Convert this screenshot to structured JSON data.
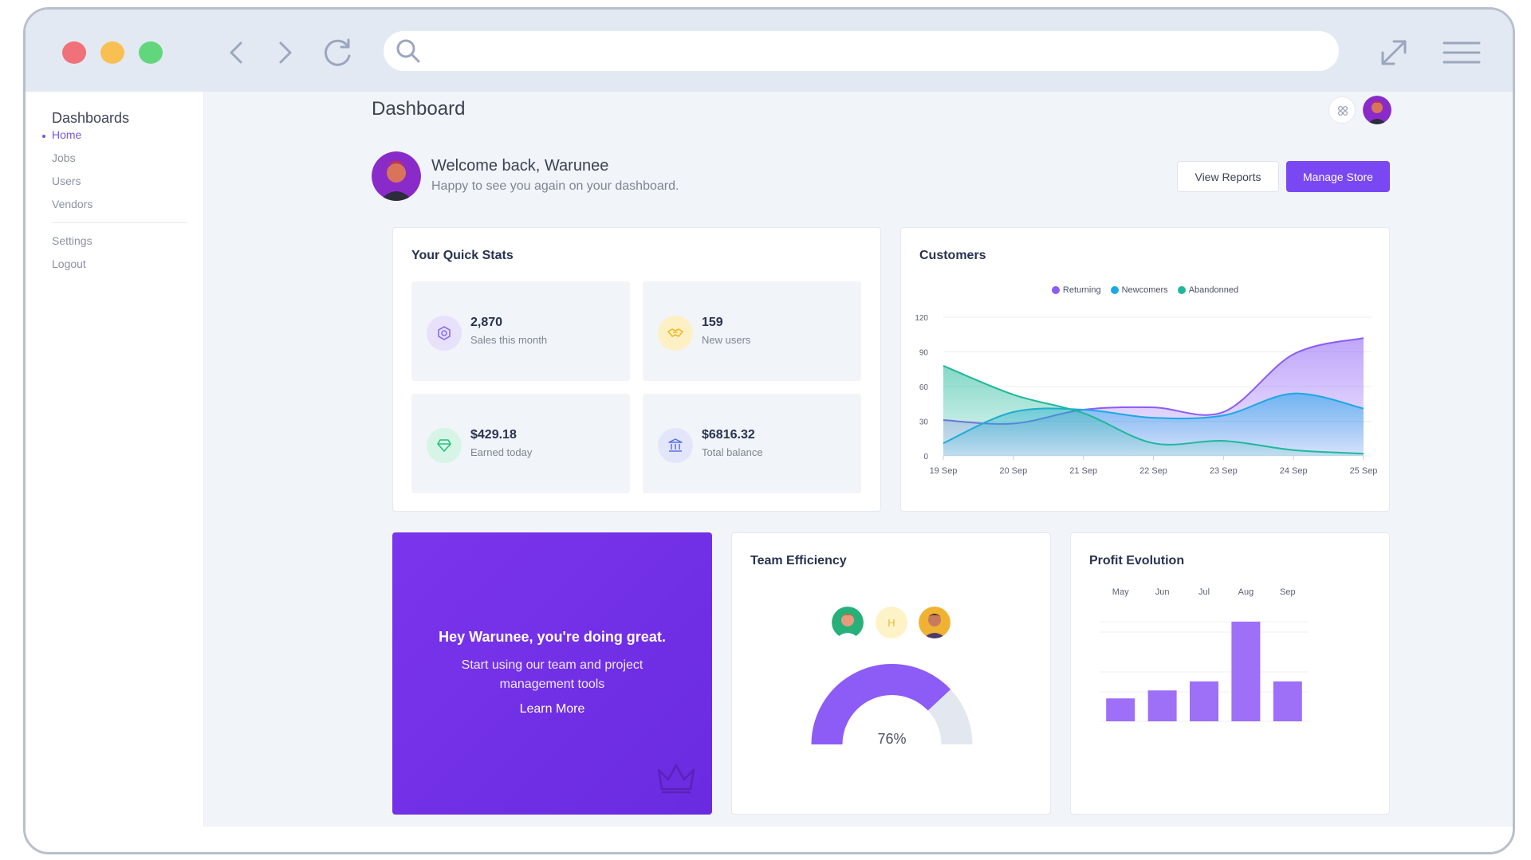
{
  "browser": {
    "address_value": "",
    "address_placeholder": ""
  },
  "sidebar": {
    "title": "Dashboards",
    "items": [
      {
        "label": "Home",
        "active": true
      },
      {
        "label": "Jobs"
      },
      {
        "label": "Users"
      },
      {
        "label": "Vendors"
      }
    ],
    "secondary_items": [
      {
        "label": "Settings"
      },
      {
        "label": "Logout"
      }
    ]
  },
  "header": {
    "title": "Dashboard"
  },
  "welcome": {
    "title": "Welcome back, Warunee",
    "subtitle": "Happy to see you again on your dashboard.",
    "view_reports_label": "View Reports",
    "manage_store_label": "Manage Store"
  },
  "quick_stats": {
    "title": "Your Quick Stats",
    "items": [
      {
        "value": "2,870",
        "label": "Sales this month",
        "icon": "target-icon",
        "color": "#8b6cf0"
      },
      {
        "value": "159",
        "label": "New users",
        "icon": "handshake-icon",
        "color": "#f5b723"
      },
      {
        "value": "$429.18",
        "label": "Earned today",
        "icon": "gem-icon",
        "color": "#22c07a"
      },
      {
        "value": "$6816.32",
        "label": "Total balance",
        "icon": "bank-icon",
        "color": "#5b6de8"
      }
    ]
  },
  "customers_chart_data": {
    "type": "area",
    "title": "Customers",
    "categories": [
      "19 Sep",
      "20 Sep",
      "21 Sep",
      "22 Sep",
      "23 Sep",
      "24 Sep",
      "25 Sep"
    ],
    "ylim": [
      0,
      120
    ],
    "yticks": [
      "120",
      "90",
      "60",
      "30",
      "0"
    ],
    "legend_position": "top-center",
    "series": [
      {
        "name": "Returning",
        "color": "#8b5cf6",
        "values": [
          31,
          28,
          40,
          42,
          38,
          88,
          102
        ]
      },
      {
        "name": "Newcomers",
        "color": "#1ea7e8",
        "values": [
          11,
          38,
          40,
          33,
          35,
          54,
          41
        ]
      },
      {
        "name": "Abandonned",
        "color": "#1fb89a",
        "values": [
          78,
          53,
          37,
          11,
          13,
          5,
          2
        ]
      }
    ]
  },
  "promo": {
    "title": "Hey Warunee, you're doing great.",
    "text": "Start using our team and project management tools",
    "link_label": "Learn More"
  },
  "team_efficiency": {
    "title": "Team Efficiency",
    "avatar_initial": "H",
    "gauge_value": 76,
    "gauge_label": "76%",
    "gauge_color": "#8d5cf6",
    "gauge_track_color": "#e2e7f0"
  },
  "profit_chart_data": {
    "type": "bar",
    "title": "Profit Evolution",
    "categories": [
      "May",
      "Jun",
      "Jul",
      "Aug",
      "Sep"
    ],
    "values": [
      23,
      31,
      40,
      100,
      40
    ],
    "ylim": [
      0,
      100
    ],
    "color": "#9e6ff7"
  }
}
